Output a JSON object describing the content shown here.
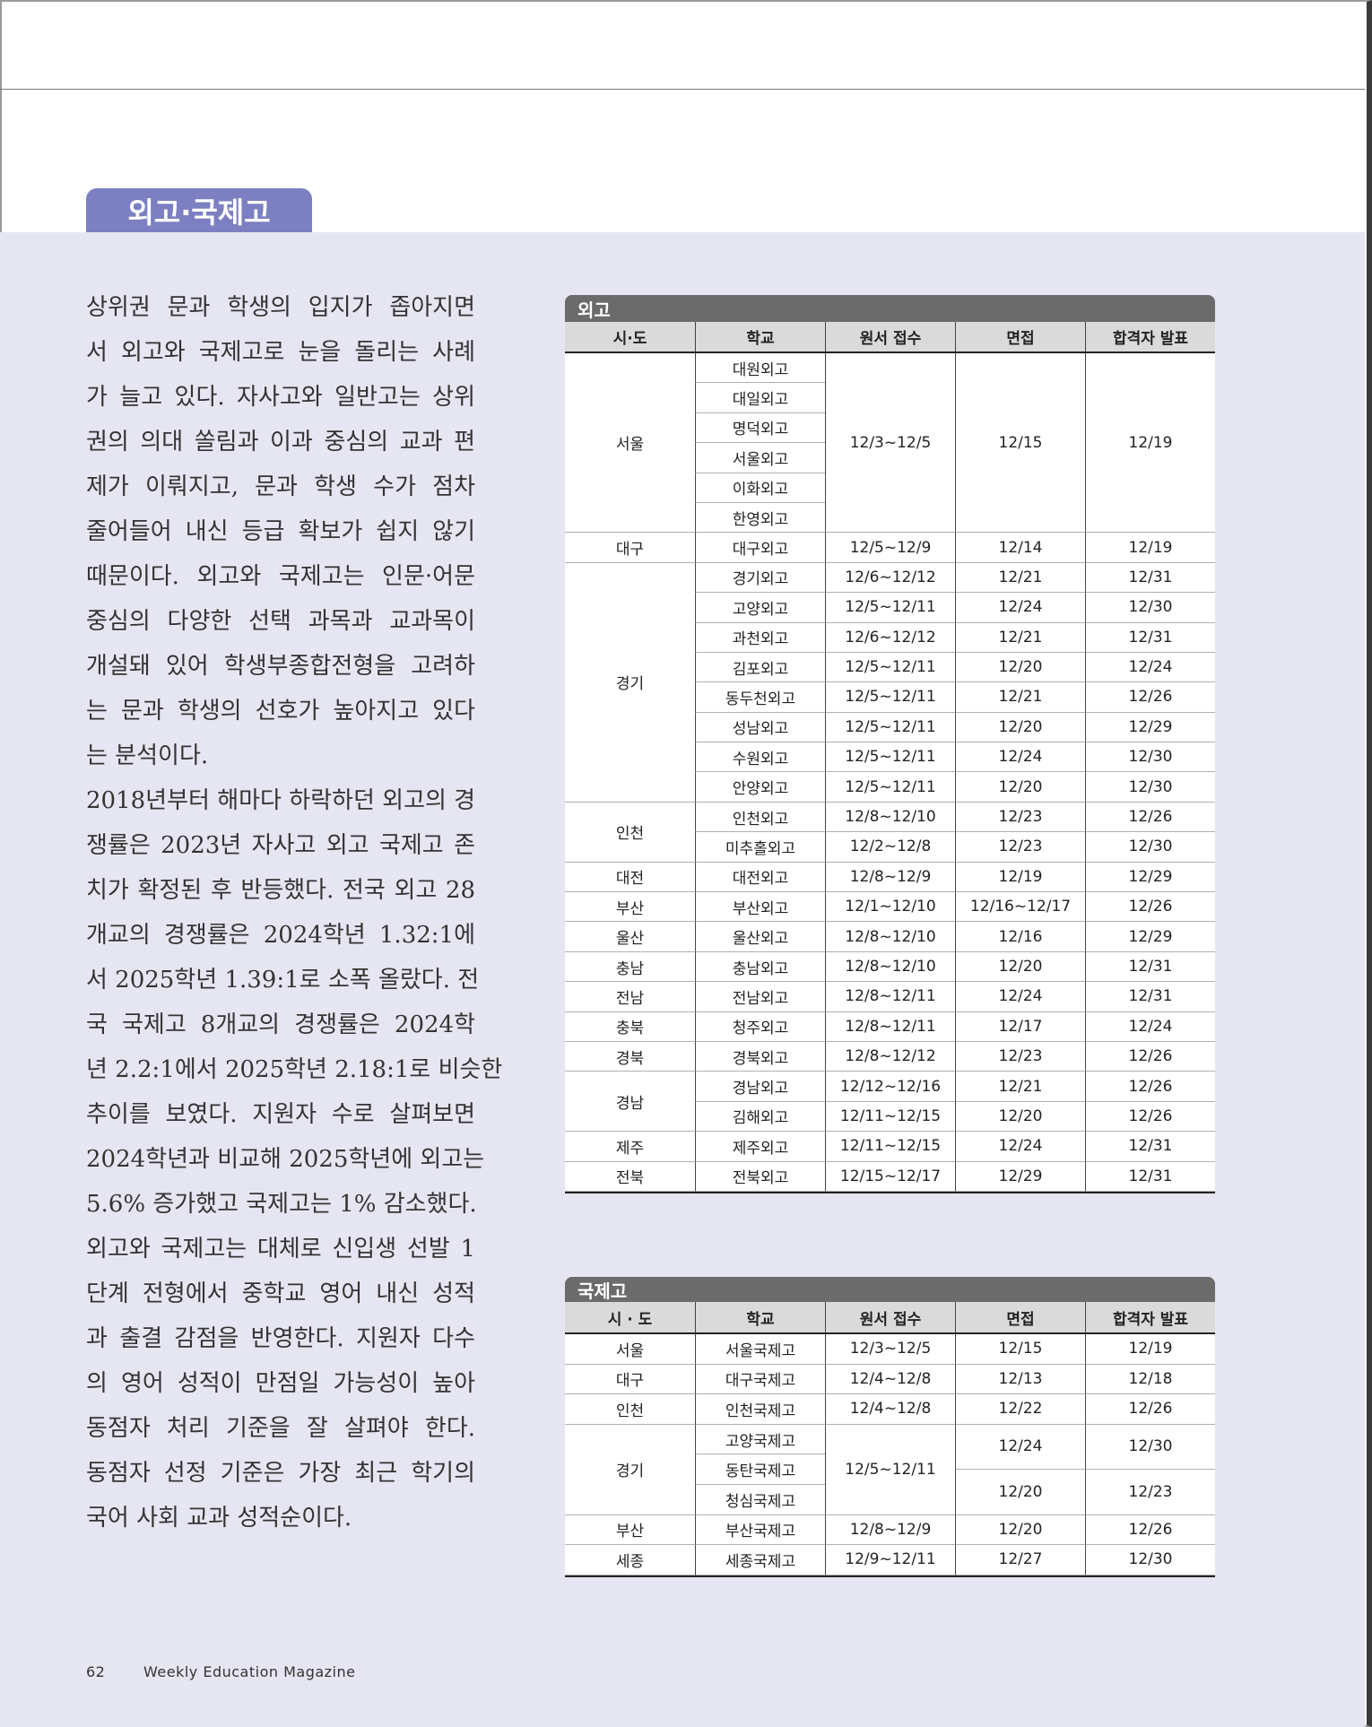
{
  "header": {
    "section_tab": "외고·국제고"
  },
  "body": [
    [
      "상위권 문과 학생의 입지가 좁아지면",
      "서 외고와 국제고로 눈을 돌리는 사례",
      "가 늘고 있다. 자사고와 일반고는 상위",
      "권의 의대 쏠림과 이과 중심의 교과 편",
      "제가 이뤄지고, 문과 학생 수가 점차",
      "줄어들어 내신 등급 확보가 쉽지 않기",
      "때문이다. 외고와 국제고는 인문·어문",
      "중심의 다양한 선택 과목과 교과목이",
      "개설돼 있어 학생부종합전형을 고려하",
      "는 문과 학생의 선호가 높아지고 있다",
      "는 분석이다."
    ],
    [
      "2018년부터 해마다 하락하던 외고의 경",
      "쟁률은 2023년 자사고 외고 국제고 존",
      "치가 확정된 후 반등했다. 전국 외고 28",
      "개교의 경쟁률은 2024학년 1.32:1에",
      "서 2025학년 1.39:1로 소폭 올랐다. 전",
      "국 국제고 8개교의 경쟁률은 2024학",
      "년 2.2:1에서 2025학년 2.18:1로 비슷한",
      "추이를 보였다. 지원자 수로 살펴보면",
      "2024학년과 비교해 2025학년에 외고는",
      "5.6% 증가했고 국제고는 1% 감소했다."
    ],
    [
      "외고와 국제고는 대체로 신입생 선발 1",
      "단계 전형에서 중학교 영어 내신 성적",
      "과 출결 감점을 반영한다. 지원자 다수",
      "의 영어 성적이 만점일 가능성이 높아",
      "동점자 처리 기준을 잘 살펴야 한다.",
      "동점자 선정 기준은 가장 최근 학기의",
      "국어 사회 교과 성적순이다."
    ]
  ],
  "tables": [
    {
      "title": "외고",
      "headers": [
        "시·도",
        "학교",
        "원서 접수",
        "면접",
        "합격자 발표"
      ],
      "rows": [
        [
          "서울",
          "대원외고",
          "12/3~12/5",
          "12/15",
          "12/19"
        ],
        [
          "대일외고"
        ],
        [
          "명덕외고"
        ],
        [
          "서울외고"
        ],
        [
          "이화외고"
        ],
        [
          "한영외고"
        ],
        [
          "대구",
          "대구외고",
          "12/5~12/9",
          "12/14",
          "12/19"
        ],
        [
          "경기",
          "경기외고",
          "12/6~12/12",
          "12/21",
          "12/31"
        ],
        [
          "고양외고",
          "12/5~12/11",
          "12/24",
          "12/30"
        ],
        [
          "과천외고",
          "12/6~12/12",
          "12/21",
          "12/31"
        ],
        [
          "김포외고",
          "12/5~12/11",
          "12/20",
          "12/24"
        ],
        [
          "동두천외고",
          "12/5~12/11",
          "12/21",
          "12/26"
        ],
        [
          "성남외고",
          "12/5~12/11",
          "12/20",
          "12/29"
        ],
        [
          "수원외고",
          "12/5~12/11",
          "12/24",
          "12/30"
        ],
        [
          "안양외고",
          "12/5~12/11",
          "12/20",
          "12/30"
        ],
        [
          "인천",
          "인천외고",
          "12/8~12/10",
          "12/23",
          "12/26"
        ],
        [
          "미추홀외고",
          "12/2~12/8",
          "12/23",
          "12/30"
        ],
        [
          "대전",
          "대전외고",
          "12/8~12/9",
          "12/19",
          "12/29"
        ],
        [
          "부산",
          "부산외고",
          "12/1~12/10",
          "12/16~12/17",
          "12/26"
        ],
        [
          "울산",
          "울산외고",
          "12/8~12/10",
          "12/16",
          "12/29"
        ],
        [
          "충남",
          "충남외고",
          "12/8~12/10",
          "12/20",
          "12/31"
        ],
        [
          "전남",
          "전남외고",
          "12/8~12/11",
          "12/24",
          "12/31"
        ],
        [
          "충북",
          "청주외고",
          "12/8~12/11",
          "12/17",
          "12/24"
        ],
        [
          "경북",
          "경북외고",
          "12/8~12/12",
          "12/23",
          "12/26"
        ],
        [
          "경남",
          "경남외고",
          "12/12~12/16",
          "12/21",
          "12/26"
        ],
        [
          "김해외고",
          "12/11~12/15",
          "12/20",
          "12/26"
        ],
        [
          "제주",
          "제주외고",
          "12/11~12/15",
          "12/24",
          "12/31"
        ],
        [
          "전북",
          "전북외고",
          "12/15~12/17",
          "12/29",
          "12/31"
        ]
      ]
    },
    {
      "title": "국제고",
      "headers": [
        "시 · 도",
        "학교",
        "원서 접수",
        "면접",
        "합격자 발표"
      ],
      "rows": [
        [
          "서울",
          "서울국제고",
          "12/3~12/5",
          "12/15",
          "12/19"
        ],
        [
          "대구",
          "대구국제고",
          "12/4~12/8",
          "12/13",
          "12/18"
        ],
        [
          "인천",
          "인천국제고",
          "12/4~12/8",
          "12/22",
          "12/26"
        ],
        [
          "경기",
          "고양국제고",
          "12/5~12/11",
          "12/24",
          "12/30"
        ],
        [
          "동탄국제고",
          "12/20",
          "12/23"
        ],
        [
          "청심국제고"
        ],
        [
          "부산",
          "부산국제고",
          "12/8~12/9",
          "12/20",
          "12/26"
        ],
        [
          "세종",
          "세종국제고",
          "12/9~12/11",
          "12/27",
          "12/30"
        ]
      ]
    }
  ],
  "footer": {
    "page_number": "62",
    "publication": "Weekly Education Magazine"
  }
}
